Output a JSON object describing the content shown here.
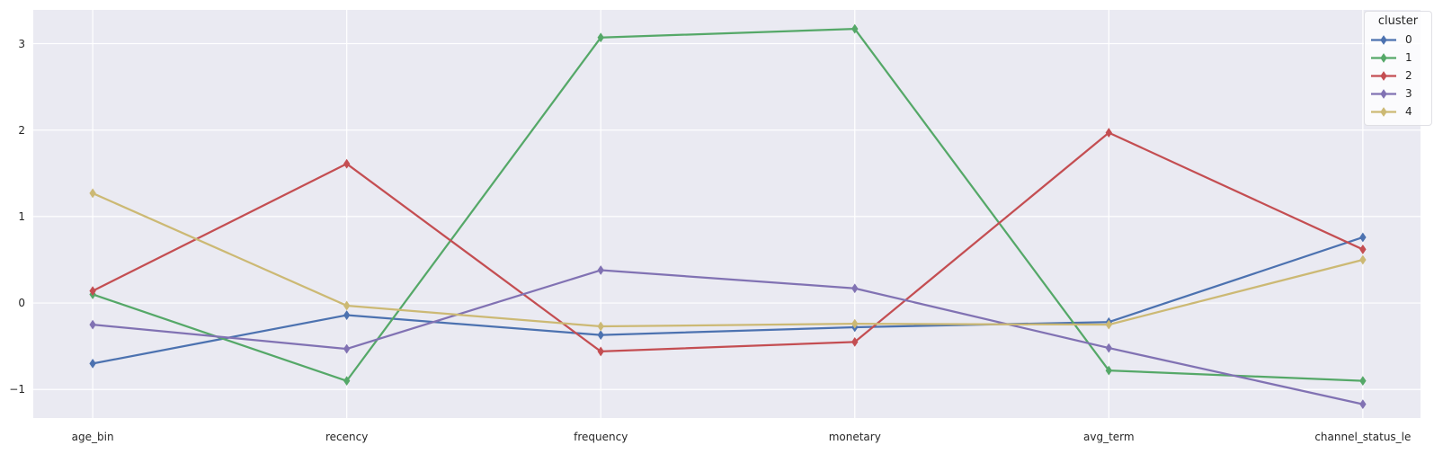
{
  "chart_data": {
    "type": "line",
    "title": "",
    "xlabel": "",
    "ylabel": "",
    "categories": [
      "age_bin",
      "recency",
      "frequency",
      "monetary",
      "avg_term",
      "channel_status_le"
    ],
    "series": [
      {
        "name": "0",
        "color": "#4c72b0",
        "values": [
          -0.7,
          -0.14,
          -0.37,
          -0.28,
          -0.22,
          0.76
        ]
      },
      {
        "name": "1",
        "color": "#55a868",
        "values": [
          0.1,
          -0.9,
          3.07,
          3.17,
          -0.78,
          -0.9
        ]
      },
      {
        "name": "2",
        "color": "#c44e52",
        "values": [
          0.14,
          1.61,
          -0.56,
          -0.45,
          1.97,
          0.62
        ]
      },
      {
        "name": "3",
        "color": "#8172b3",
        "values": [
          -0.25,
          -0.53,
          0.38,
          0.17,
          -0.52,
          -1.17
        ]
      },
      {
        "name": "4",
        "color": "#ccb974",
        "values": [
          1.27,
          -0.03,
          -0.27,
          -0.24,
          -0.25,
          0.5
        ]
      }
    ],
    "legend": {
      "title": "cluster",
      "position": "upper right",
      "entries": [
        "0",
        "1",
        "2",
        "3",
        "4"
      ]
    },
    "yticks": [
      3,
      2,
      1,
      0,
      -1
    ],
    "ylim": [
      -1.33,
      3.39
    ],
    "xlim": [
      -0.234,
      5.227
    ],
    "grid": true,
    "marker": "thin-diamond",
    "style": {
      "plot_background": "#eaeaf2",
      "gridline_color": "#ffffff",
      "text_color": "#262626"
    }
  }
}
